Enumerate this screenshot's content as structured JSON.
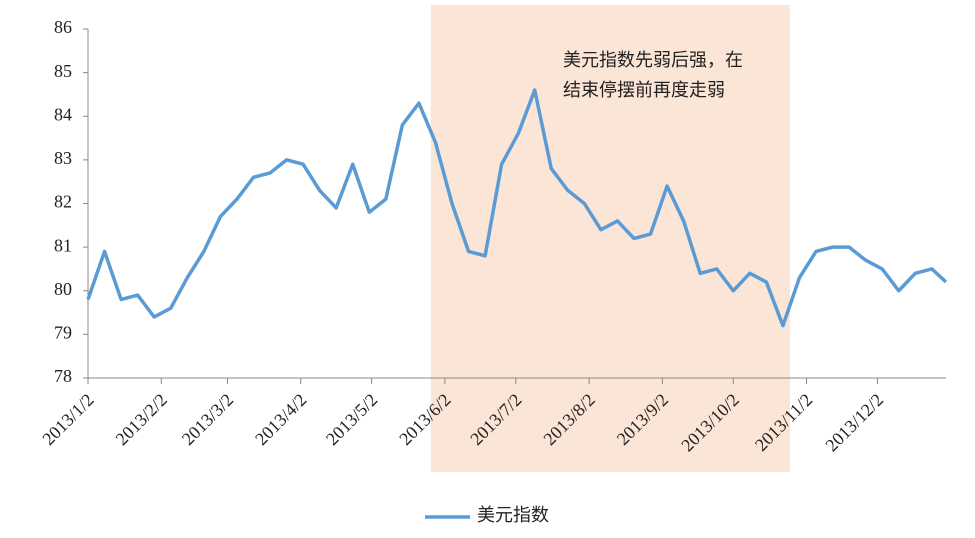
{
  "chart_data": {
    "type": "line",
    "annotation": [
      "美元指数先弱后强，在",
      "结束停摆前再度走弱"
    ],
    "shaded_range": [
      "2013/5/27",
      "2013/10/26"
    ],
    "shade_color": "#fbe5d6",
    "x": [
      "2013/1/2",
      "2013/1/9",
      "2013/1/16",
      "2013/1/23",
      "2013/1/30",
      "2013/2/6",
      "2013/2/13",
      "2013/2/20",
      "2013/2/27",
      "2013/3/6",
      "2013/3/13",
      "2013/3/20",
      "2013/3/27",
      "2013/4/3",
      "2013/4/10",
      "2013/4/17",
      "2013/4/24",
      "2013/5/1",
      "2013/5/8",
      "2013/5/15",
      "2013/5/22",
      "2013/5/29",
      "2013/6/5",
      "2013/6/12",
      "2013/6/19",
      "2013/6/26",
      "2013/7/3",
      "2013/7/10",
      "2013/7/17",
      "2013/7/24",
      "2013/7/31",
      "2013/8/7",
      "2013/8/14",
      "2013/8/21",
      "2013/8/28",
      "2013/9/4",
      "2013/9/11",
      "2013/9/18",
      "2013/9/25",
      "2013/10/2",
      "2013/10/9",
      "2013/10/16",
      "2013/10/23",
      "2013/10/30",
      "2013/11/6",
      "2013/11/13",
      "2013/11/20",
      "2013/11/27",
      "2013/12/4",
      "2013/12/11",
      "2013/12/18",
      "2013/12/25",
      "2013/12/31"
    ],
    "series": [
      {
        "name": "美元指数",
        "color": "#5b9bd5",
        "values": [
          79.8,
          80.9,
          79.8,
          79.9,
          79.4,
          79.6,
          80.3,
          80.9,
          81.7,
          82.1,
          82.6,
          82.7,
          83.0,
          82.9,
          82.3,
          81.9,
          82.9,
          81.8,
          82.1,
          83.8,
          84.3,
          83.4,
          82.0,
          80.9,
          80.8,
          82.9,
          83.6,
          84.6,
          82.8,
          82.3,
          82.0,
          81.4,
          81.6,
          81.2,
          81.3,
          82.4,
          81.6,
          80.4,
          80.5,
          80.0,
          80.4,
          80.2,
          79.2,
          80.3,
          80.9,
          81.0,
          81.0,
          80.7,
          80.5,
          80.0,
          80.4,
          80.5,
          80.2
        ]
      }
    ],
    "xlim": [
      "2013/1/2",
      "2013/12/31"
    ],
    "xticks": [
      "2013/1/2",
      "2013/2/2",
      "2013/3/2",
      "2013/4/2",
      "2013/5/2",
      "2013/6/2",
      "2013/7/2",
      "2013/8/2",
      "2013/9/2",
      "2013/10/2",
      "2013/11/2",
      "2013/12/2"
    ],
    "ylim": [
      78,
      86
    ],
    "yticks": [
      78,
      79,
      80,
      81,
      82,
      83,
      84,
      85,
      86
    ],
    "grid": false,
    "legend": "bottom"
  }
}
